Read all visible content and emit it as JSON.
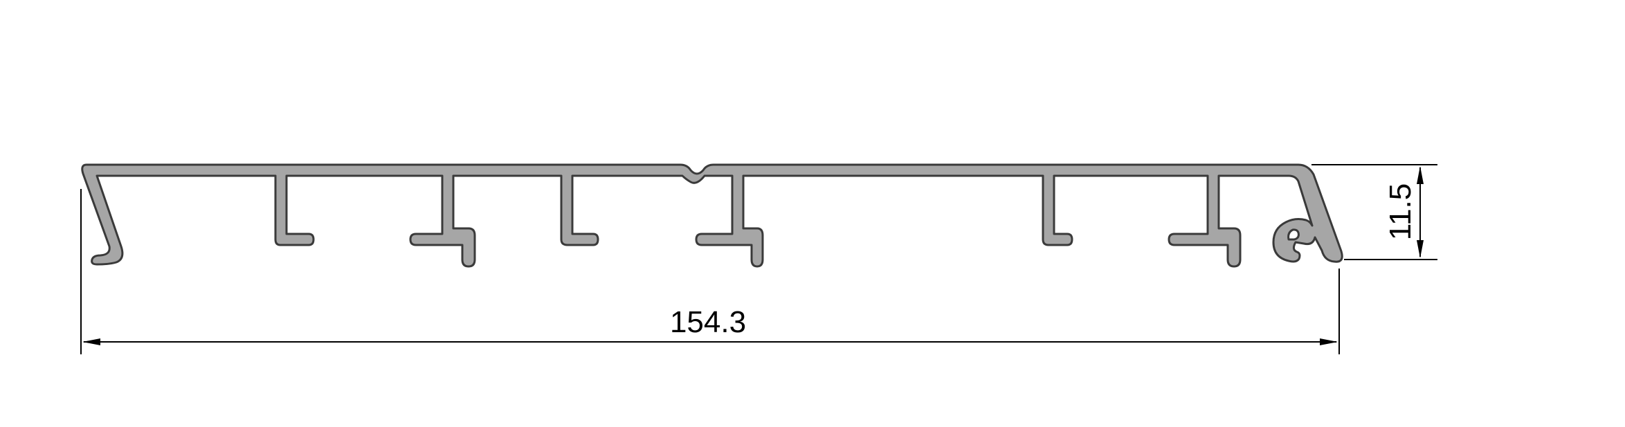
{
  "drawing": {
    "dimensions": {
      "width": "154.3",
      "height": "11.5"
    },
    "colors": {
      "profile_fill": "#a6a6a6",
      "outline": "#3a3a3a",
      "dimension_line": "#000000",
      "background": "#ffffff"
    }
  }
}
